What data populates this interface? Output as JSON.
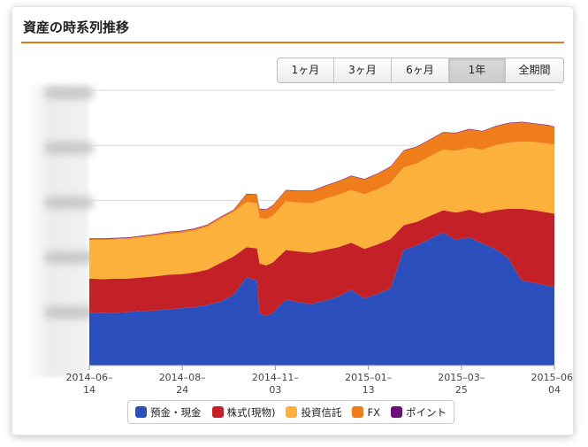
{
  "header": {
    "title": "資産の時系列推移"
  },
  "range_buttons": [
    {
      "label": "1ヶ月",
      "active": false
    },
    {
      "label": "3ヶ月",
      "active": false
    },
    {
      "label": "6ヶ月",
      "active": false
    },
    {
      "label": "1年",
      "active": true
    },
    {
      "label": "全期間",
      "active": false
    }
  ],
  "chart_data": {
    "type": "area",
    "stacked": true,
    "x_tick_labels": [
      [
        "2014–06–",
        "14"
      ],
      [
        "2014–08–",
        "24"
      ],
      [
        "2014–11–",
        "03"
      ],
      [
        "2015–01–",
        "13"
      ],
      [
        "2015–03–",
        "25"
      ],
      [
        "2015–06–",
        "04"
      ]
    ],
    "y_axis_labels_visible": false,
    "ylim": [
      0,
      5
    ],
    "grid": true,
    "legend_position": "bottom",
    "x": [
      0,
      10,
      20,
      30,
      40,
      50,
      60,
      70,
      80,
      90,
      100,
      110,
      120,
      128,
      130,
      135,
      140,
      150,
      160,
      170,
      180,
      190,
      200,
      210,
      220,
      230,
      240,
      250,
      260,
      270,
      280,
      290,
      300,
      310,
      320,
      330,
      340,
      350,
      355
    ],
    "series": [
      {
        "name": "預金・現金",
        "color": "#2b50be",
        "values": [
          0.96,
          0.95,
          0.96,
          0.97,
          0.99,
          1.0,
          1.02,
          1.04,
          1.06,
          1.1,
          1.16,
          1.28,
          1.6,
          1.55,
          0.95,
          0.9,
          0.95,
          1.2,
          1.15,
          1.12,
          1.18,
          1.25,
          1.38,
          1.22,
          1.3,
          1.4,
          2.1,
          2.18,
          2.3,
          2.42,
          2.28,
          2.33,
          2.22,
          2.12,
          1.95,
          1.55,
          1.5,
          1.45,
          1.43
        ]
      },
      {
        "name": "株式(現物)",
        "color": "#c32127",
        "values": [
          0.62,
          0.62,
          0.62,
          0.61,
          0.61,
          0.62,
          0.63,
          0.62,
          0.63,
          0.64,
          0.7,
          0.7,
          0.55,
          0.58,
          0.9,
          0.92,
          0.92,
          0.9,
          0.92,
          0.93,
          0.92,
          0.9,
          0.85,
          0.9,
          0.9,
          0.9,
          0.45,
          0.43,
          0.42,
          0.4,
          0.5,
          0.5,
          0.55,
          0.7,
          0.9,
          1.3,
          1.32,
          1.33,
          1.33
        ]
      },
      {
        "name": "投資信託",
        "color": "#fbb13c",
        "values": [
          0.7,
          0.71,
          0.71,
          0.72,
          0.73,
          0.74,
          0.74,
          0.75,
          0.76,
          0.78,
          0.8,
          0.81,
          0.82,
          0.82,
          0.83,
          0.84,
          0.85,
          0.88,
          0.89,
          0.9,
          0.93,
          0.95,
          0.96,
          0.99,
          1.0,
          1.02,
          1.05,
          1.06,
          1.08,
          1.1,
          1.12,
          1.13,
          1.15,
          1.18,
          1.2,
          1.22,
          1.24,
          1.25,
          1.25
        ]
      },
      {
        "name": "FX",
        "color": "#ef7d1a",
        "values": [
          0.02,
          0.02,
          0.02,
          0.02,
          0.02,
          0.02,
          0.03,
          0.03,
          0.03,
          0.03,
          0.03,
          0.03,
          0.14,
          0.15,
          0.16,
          0.17,
          0.18,
          0.2,
          0.21,
          0.22,
          0.23,
          0.24,
          0.25,
          0.27,
          0.28,
          0.29,
          0.3,
          0.3,
          0.3,
          0.31,
          0.32,
          0.33,
          0.33,
          0.34,
          0.35,
          0.35,
          0.33,
          0.33,
          0.32
        ]
      },
      {
        "name": "ポイント",
        "color": "#6c0f7a",
        "values": [
          0.01,
          0.01,
          0.01,
          0.01,
          0.01,
          0.01,
          0.01,
          0.01,
          0.01,
          0.01,
          0.01,
          0.01,
          0.01,
          0.01,
          0.01,
          0.01,
          0.01,
          0.01,
          0.01,
          0.01,
          0.01,
          0.01,
          0.01,
          0.01,
          0.01,
          0.01,
          0.01,
          0.01,
          0.01,
          0.01,
          0.01,
          0.01,
          0.01,
          0.01,
          0.01,
          0.01,
          0.01,
          0.01,
          0.01
        ]
      }
    ]
  }
}
